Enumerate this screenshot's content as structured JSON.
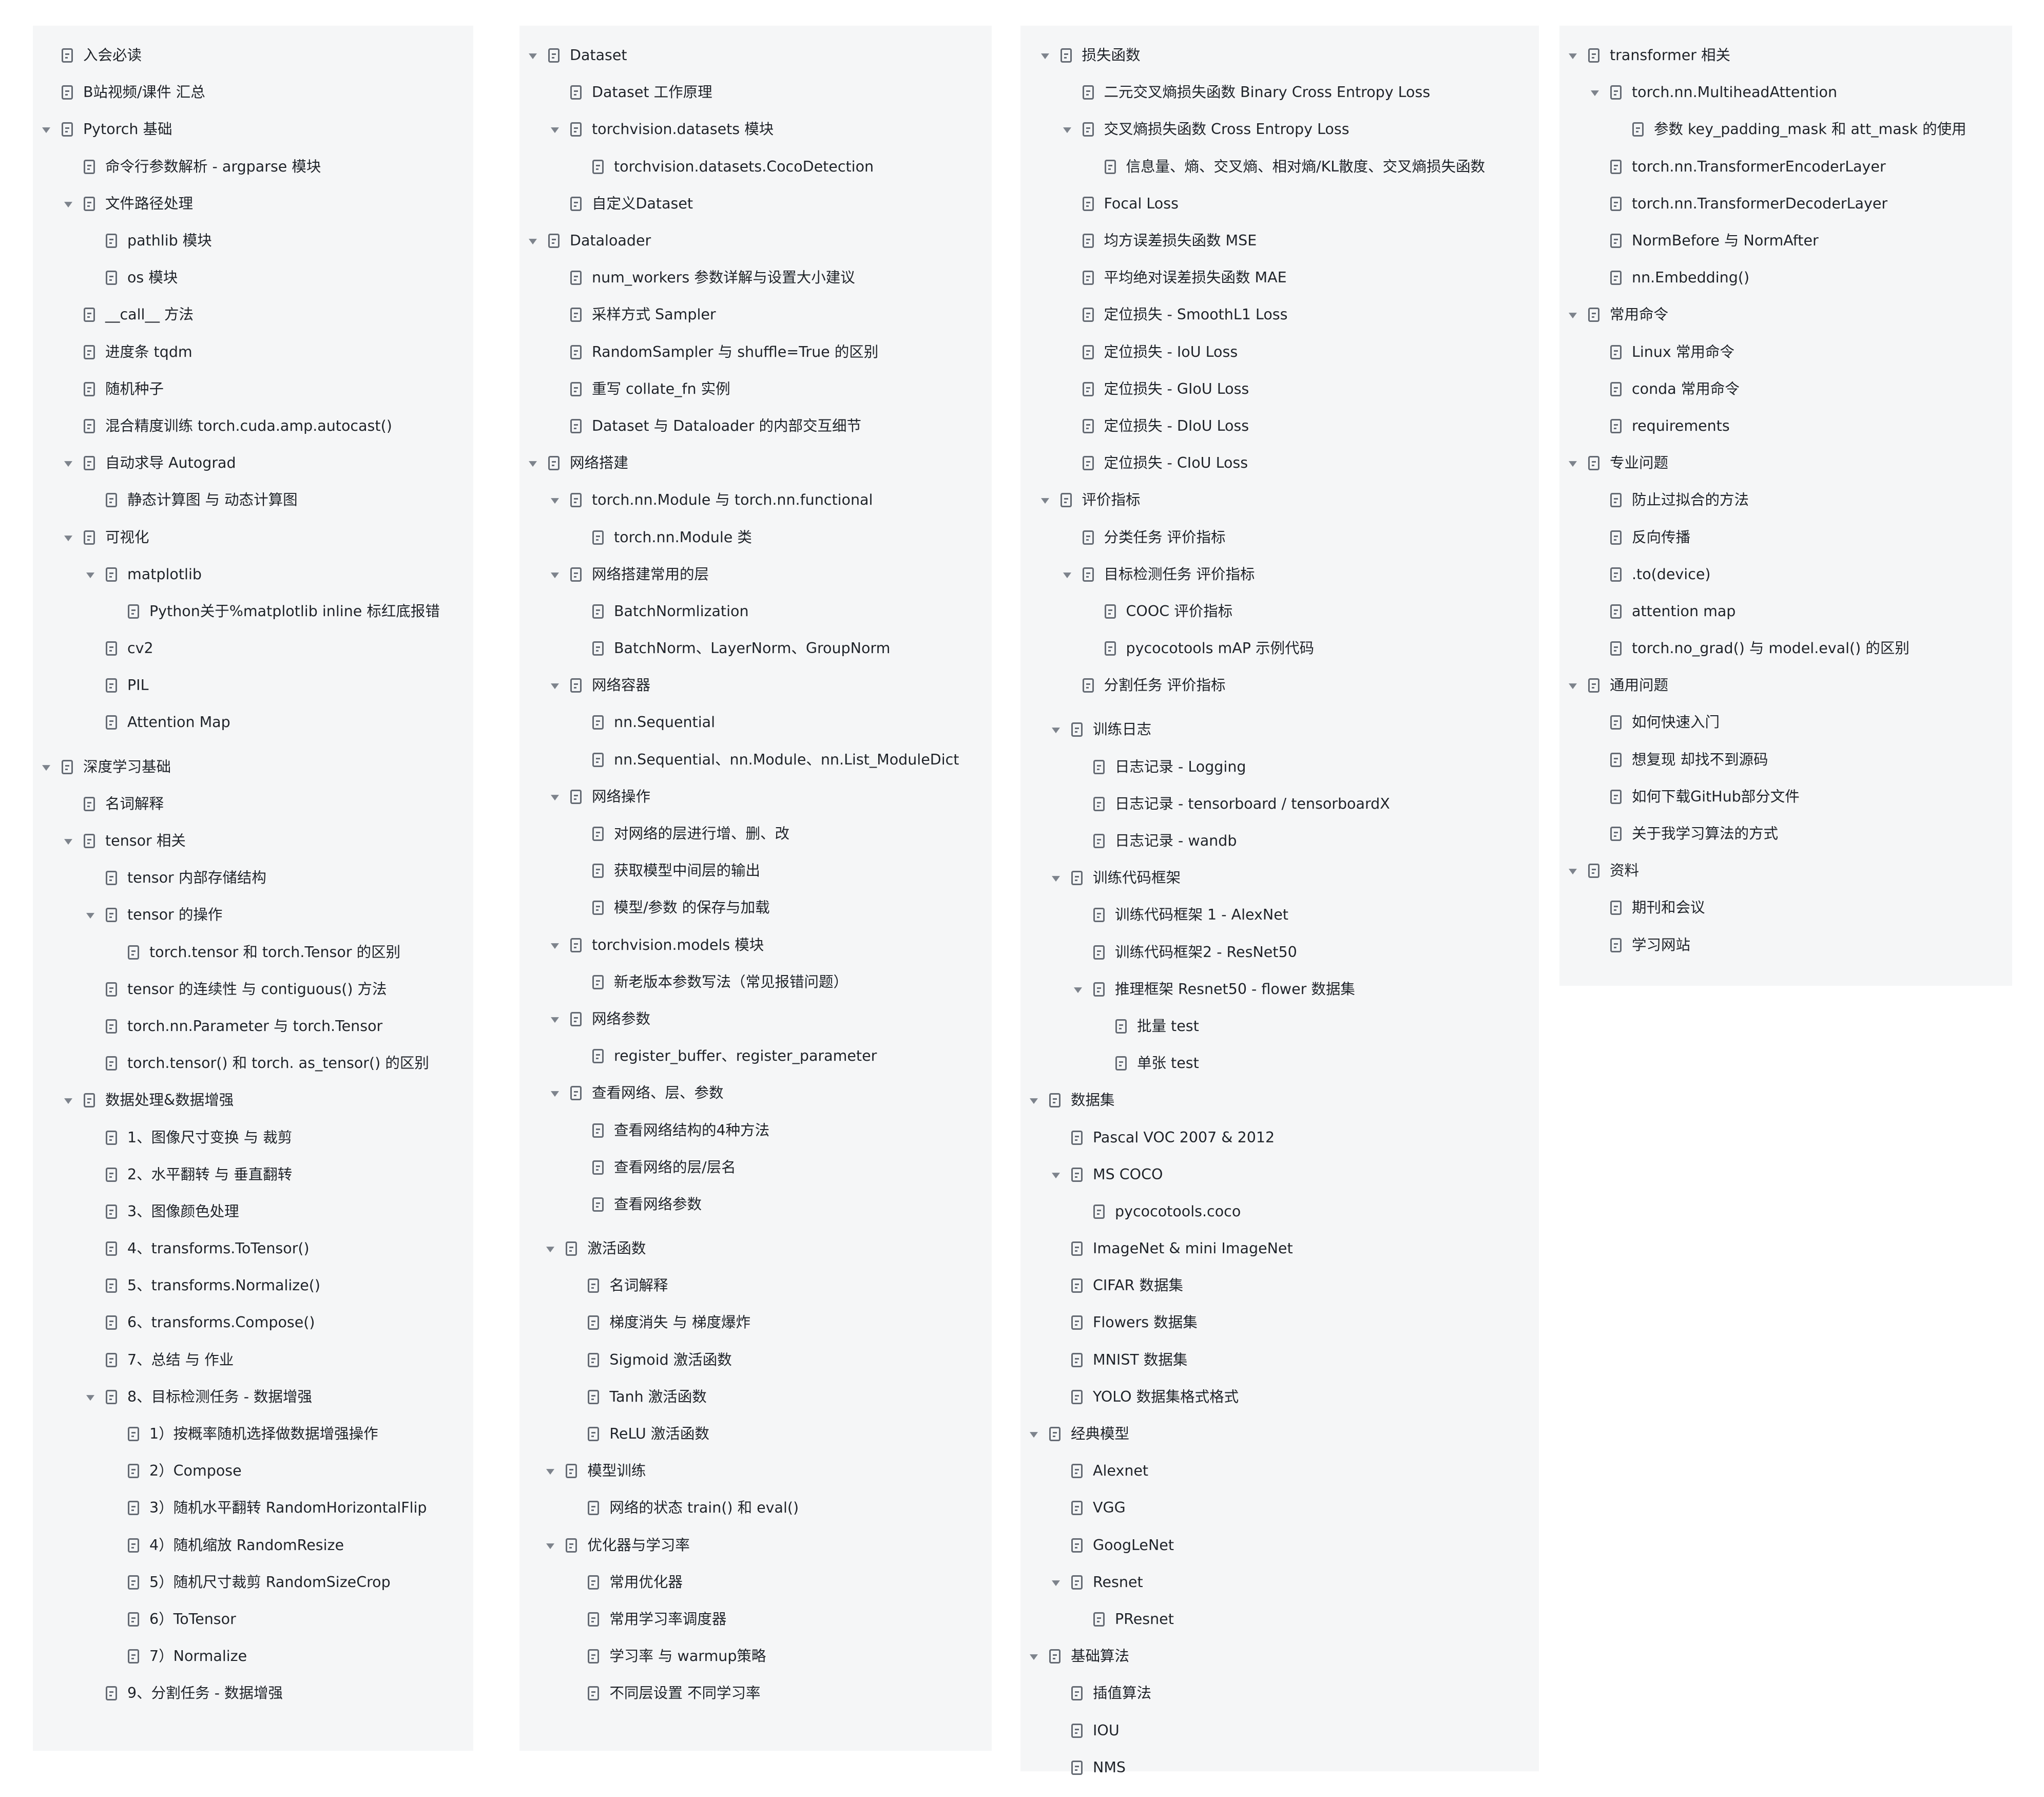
{
  "colors": {
    "panel_bg": "#f5f6f7",
    "text": "#1f2329",
    "icon": "#646a73",
    "arrow": "#7d838c"
  },
  "icons": {
    "expand": "chevron-down-icon",
    "document": "doc-icon"
  },
  "panels": [
    {
      "items": [
        {
          "t": "入会必读",
          "d": 0,
          "c": false
        },
        {
          "t": "B站视频/课件 汇总",
          "d": 0,
          "c": false
        },
        {
          "t": "Pytorch 基础",
          "d": 0,
          "c": true
        },
        {
          "t": "命令行参数解析 - argparse 模块",
          "d": 1,
          "c": false
        },
        {
          "t": "文件路径处理",
          "d": 1,
          "c": true
        },
        {
          "t": "pathlib 模块",
          "d": 2,
          "c": false
        },
        {
          "t": "os 模块",
          "d": 2,
          "c": false
        },
        {
          "t": "__call__ 方法",
          "d": 1,
          "c": false
        },
        {
          "t": "进度条 tqdm",
          "d": 1,
          "c": false
        },
        {
          "t": "随机种子",
          "d": 1,
          "c": false
        },
        {
          "t": "混合精度训练 torch.cuda.amp.autocast()",
          "d": 1,
          "c": false
        },
        {
          "t": "自动求导 Autograd",
          "d": 1,
          "c": true
        },
        {
          "t": "静态计算图 与 动态计算图",
          "d": 2,
          "c": false
        },
        {
          "t": "可视化",
          "d": 1,
          "c": true
        },
        {
          "t": "matplotlib",
          "d": 2,
          "c": true
        },
        {
          "t": "Python关于%matplotlib inline 标红底报错",
          "d": 3,
          "c": false
        },
        {
          "t": "cv2",
          "d": 2,
          "c": false
        },
        {
          "t": "PIL",
          "d": 2,
          "c": false
        },
        {
          "t": "Attention Map",
          "d": 2,
          "c": false
        },
        {
          "gap": true
        },
        {
          "t": "深度学习基础",
          "d": 0,
          "c": true
        },
        {
          "t": "名词解释",
          "d": 1,
          "c": false
        },
        {
          "t": "tensor 相关",
          "d": 1,
          "c": true
        },
        {
          "t": "tensor 内部存储结构",
          "d": 2,
          "c": false
        },
        {
          "t": "tensor 的操作",
          "d": 2,
          "c": true
        },
        {
          "t": "torch.tensor 和 torch.Tensor 的区别",
          "d": 3,
          "c": false
        },
        {
          "t": "tensor 的连续性 与 contiguous() 方法",
          "d": 2,
          "c": false
        },
        {
          "t": "torch.nn.Parameter 与 torch.Tensor",
          "d": 2,
          "c": false
        },
        {
          "t": "torch.tensor() 和 torch. as_tensor() 的区别",
          "d": 2,
          "c": false
        },
        {
          "t": "数据处理&数据增强",
          "d": 1,
          "c": true
        },
        {
          "t": "1、图像尺寸变换 与 裁剪",
          "d": 2,
          "c": false
        },
        {
          "t": "2、水平翻转 与 垂直翻转",
          "d": 2,
          "c": false
        },
        {
          "t": "3、图像颜色处理",
          "d": 2,
          "c": false
        },
        {
          "t": "4、transforms.ToTensor()",
          "d": 2,
          "c": false
        },
        {
          "t": "5、transforms.Normalize()",
          "d": 2,
          "c": false
        },
        {
          "t": "6、transforms.Compose()",
          "d": 2,
          "c": false
        },
        {
          "t": "7、总结 与 作业",
          "d": 2,
          "c": false
        },
        {
          "t": "8、目标检测任务 - 数据增强",
          "d": 2,
          "c": true
        },
        {
          "t": "1）按概率随机选择做数据增强操作",
          "d": 3,
          "c": false
        },
        {
          "t": "2）Compose",
          "d": 3,
          "c": false
        },
        {
          "t": "3）随机水平翻转 RandomHorizontalFlip",
          "d": 3,
          "c": false
        },
        {
          "t": "4）随机缩放 RandomResize",
          "d": 3,
          "c": false
        },
        {
          "t": "5）随机尺寸裁剪 RandomSizeCrop",
          "d": 3,
          "c": false
        },
        {
          "t": "6）ToTensor",
          "d": 3,
          "c": false
        },
        {
          "t": "7）Normalize",
          "d": 3,
          "c": false
        },
        {
          "t": "9、分割任务 - 数据增强",
          "d": 2,
          "c": false
        }
      ]
    },
    {
      "items": [
        {
          "t": "Dataset",
          "d": 0,
          "c": true
        },
        {
          "t": "Dataset 工作原理",
          "d": 1,
          "c": false
        },
        {
          "t": "torchvision.datasets 模块",
          "d": 1,
          "c": true
        },
        {
          "t": "torchvision.datasets.CocoDetection",
          "d": 2,
          "c": false
        },
        {
          "t": "自定义Dataset",
          "d": 1,
          "c": false
        },
        {
          "t": "Dataloader",
          "d": 0,
          "c": true
        },
        {
          "t": "num_workers 参数详解与设置大小建议",
          "d": 1,
          "c": false
        },
        {
          "t": "采样方式 Sampler",
          "d": 1,
          "c": false
        },
        {
          "t": "RandomSampler 与 shuffle=True 的区别",
          "d": 1,
          "c": false
        },
        {
          "t": "重写 collate_fn 实例",
          "d": 1,
          "c": false
        },
        {
          "t": "Dataset 与 Dataloader 的内部交互细节",
          "d": 1,
          "c": false
        },
        {
          "t": "网络搭建",
          "d": 0,
          "c": true
        },
        {
          "t": "torch.nn.Module 与 torch.nn.functional",
          "d": 1,
          "c": true
        },
        {
          "t": "torch.nn.Module 类",
          "d": 2,
          "c": false
        },
        {
          "t": "网络搭建常用的层",
          "d": 1,
          "c": true
        },
        {
          "t": "BatchNormlization",
          "d": 2,
          "c": false
        },
        {
          "t": "BatchNorm、LayerNorm、GroupNorm",
          "d": 2,
          "c": false
        },
        {
          "t": "网络容器",
          "d": 1,
          "c": true
        },
        {
          "t": "nn.Sequential",
          "d": 2,
          "c": false
        },
        {
          "t": "nn.Sequential、nn.Module、nn.List_ModuleDict",
          "d": 2,
          "c": false
        },
        {
          "t": "网络操作",
          "d": 1,
          "c": true
        },
        {
          "t": "对网络的层进行增、删、改",
          "d": 2,
          "c": false
        },
        {
          "t": "获取模型中间层的输出",
          "d": 2,
          "c": false
        },
        {
          "t": "模型/参数 的保存与加载",
          "d": 2,
          "c": false
        },
        {
          "t": "torchvision.models 模块",
          "d": 1,
          "c": true
        },
        {
          "t": "新老版本参数写法（常见报错问题）",
          "d": 2,
          "c": false
        },
        {
          "t": "网络参数",
          "d": 1,
          "c": true
        },
        {
          "t": "register_buffer、register_parameter",
          "d": 2,
          "c": false
        },
        {
          "t": "查看网络、层、参数",
          "d": 1,
          "c": true
        },
        {
          "t": "查看网络结构的4种方法",
          "d": 2,
          "c": false
        },
        {
          "t": "查看网络的层/层名",
          "d": 2,
          "c": false
        },
        {
          "t": "查看网络参数",
          "d": 2,
          "c": false
        },
        {
          "gap": true
        },
        {
          "t": "激活函数",
          "d": 0.8,
          "c": true
        },
        {
          "t": "名词解释",
          "d": 1.8,
          "c": false
        },
        {
          "t": "梯度消失 与 梯度爆炸",
          "d": 1.8,
          "c": false
        },
        {
          "t": "Sigmoid 激活函数",
          "d": 1.8,
          "c": false
        },
        {
          "t": "Tanh 激活函数",
          "d": 1.8,
          "c": false
        },
        {
          "t": "ReLU 激活函数",
          "d": 1.8,
          "c": false
        },
        {
          "t": "模型训练",
          "d": 0.8,
          "c": true
        },
        {
          "t": "网络的状态 train() 和 eval()",
          "d": 1.8,
          "c": false
        },
        {
          "t": "优化器与学习率",
          "d": 0.8,
          "c": true
        },
        {
          "t": "常用优化器",
          "d": 1.8,
          "c": false
        },
        {
          "t": "常用学习率调度器",
          "d": 1.8,
          "c": false
        },
        {
          "t": "学习率 与 warmup策略",
          "d": 1.8,
          "c": false
        },
        {
          "t": "不同层设置 不同学习率",
          "d": 1.8,
          "c": false
        }
      ]
    },
    {
      "items": [
        {
          "t": "损失函数",
          "d": 0.5,
          "c": true
        },
        {
          "t": "二元交叉熵损失函数 Binary Cross Entropy Loss",
          "d": 1.5,
          "c": false
        },
        {
          "t": "交叉熵损失函数 Cross Entropy Loss",
          "d": 1.5,
          "c": true
        },
        {
          "t": "信息量、熵、交叉熵、相对熵/KL散度、交叉熵损失函数",
          "d": 2.5,
          "c": false
        },
        {
          "t": "Focal Loss",
          "d": 1.5,
          "c": false
        },
        {
          "t": "均方误差损失函数 MSE",
          "d": 1.5,
          "c": false
        },
        {
          "t": "平均绝对误差损失函数 MAE",
          "d": 1.5,
          "c": false
        },
        {
          "t": "定位损失 - SmoothL1 Loss",
          "d": 1.5,
          "c": false
        },
        {
          "t": "定位损失 - IoU Loss",
          "d": 1.5,
          "c": false
        },
        {
          "t": "定位损失 - GIoU Loss",
          "d": 1.5,
          "c": false
        },
        {
          "t": "定位损失 - DIoU Loss",
          "d": 1.5,
          "c": false
        },
        {
          "t": "定位损失 - CIoU Loss",
          "d": 1.5,
          "c": false
        },
        {
          "t": "评价指标",
          "d": 0.5,
          "c": true
        },
        {
          "t": "分类任务 评价指标",
          "d": 1.5,
          "c": false
        },
        {
          "t": "目标检测任务 评价指标",
          "d": 1.5,
          "c": true
        },
        {
          "t": "COOC 评价指标",
          "d": 2.5,
          "c": false
        },
        {
          "t": "pycocotools mAP 示例代码",
          "d": 2.5,
          "c": false
        },
        {
          "t": "分割任务 评价指标",
          "d": 1.5,
          "c": false
        },
        {
          "gap": true
        },
        {
          "t": "训练日志",
          "d": 1,
          "c": true
        },
        {
          "t": "日志记录 - Logging",
          "d": 2,
          "c": false
        },
        {
          "t": "日志记录 - tensorboard / tensorboardX",
          "d": 2,
          "c": false
        },
        {
          "t": "日志记录 - wandb",
          "d": 2,
          "c": false
        },
        {
          "t": "训练代码框架",
          "d": 1,
          "c": true
        },
        {
          "t": "训练代码框架 1 - AlexNet",
          "d": 2,
          "c": false
        },
        {
          "t": "训练代码框架2 - ResNet50",
          "d": 2,
          "c": false
        },
        {
          "t": "推理框架 Resnet50 - flower 数据集",
          "d": 2,
          "c": true
        },
        {
          "t": "批量 test",
          "d": 3,
          "c": false
        },
        {
          "t": "单张 test",
          "d": 3,
          "c": false
        },
        {
          "t": "数据集",
          "d": 0,
          "c": true
        },
        {
          "t": "Pascal VOC 2007 & 2012",
          "d": 1,
          "c": false
        },
        {
          "t": "MS COCO",
          "d": 1,
          "c": true
        },
        {
          "t": "pycocotools.coco",
          "d": 2,
          "c": false
        },
        {
          "t": "ImageNet & mini ImageNet",
          "d": 1,
          "c": false
        },
        {
          "t": "CIFAR 数据集",
          "d": 1,
          "c": false
        },
        {
          "t": "Flowers 数据集",
          "d": 1,
          "c": false
        },
        {
          "t": "MNIST 数据集",
          "d": 1,
          "c": false
        },
        {
          "t": "YOLO 数据集格式格式",
          "d": 1,
          "c": false
        },
        {
          "t": "经典模型",
          "d": 0,
          "c": true
        },
        {
          "t": "Alexnet",
          "d": 1,
          "c": false
        },
        {
          "t": "VGG",
          "d": 1,
          "c": false
        },
        {
          "t": "GoogLeNet",
          "d": 1,
          "c": false
        },
        {
          "t": "Resnet",
          "d": 1,
          "c": true
        },
        {
          "t": "PResnet",
          "d": 2,
          "c": false
        },
        {
          "t": "基础算法",
          "d": 0,
          "c": true
        },
        {
          "t": "插值算法",
          "d": 1,
          "c": false
        },
        {
          "t": "IOU",
          "d": 1,
          "c": false
        },
        {
          "t": "NMS",
          "d": 1,
          "c": false
        }
      ]
    },
    {
      "items": [
        {
          "t": "transformer 相关",
          "d": 0,
          "c": true
        },
        {
          "t": "torch.nn.MultiheadAttention",
          "d": 1,
          "c": true
        },
        {
          "t": "参数 key_padding_mask 和 att_mask 的使用",
          "d": 2,
          "c": false
        },
        {
          "t": "torch.nn.TransformerEncoderLayer",
          "d": 1,
          "c": false
        },
        {
          "t": "torch.nn.TransformerDecoderLayer",
          "d": 1,
          "c": false
        },
        {
          "t": "NormBefore 与 NormAfter",
          "d": 1,
          "c": false
        },
        {
          "t": "nn.Embedding()",
          "d": 1,
          "c": false
        },
        {
          "t": "常用命令",
          "d": 0,
          "c": true
        },
        {
          "t": "Linux 常用命令",
          "d": 1,
          "c": false
        },
        {
          "t": "conda 常用命令",
          "d": 1,
          "c": false
        },
        {
          "t": "requirements",
          "d": 1,
          "c": false
        },
        {
          "t": "专业问题",
          "d": 0,
          "c": true
        },
        {
          "t": "防止过拟合的方法",
          "d": 1,
          "c": false
        },
        {
          "t": "反向传播",
          "d": 1,
          "c": false
        },
        {
          "t": ".to(device)",
          "d": 1,
          "c": false
        },
        {
          "t": "attention map",
          "d": 1,
          "c": false
        },
        {
          "t": "torch.no_grad() 与 model.eval() 的区别",
          "d": 1,
          "c": false
        },
        {
          "t": "通用问题",
          "d": 0,
          "c": true
        },
        {
          "t": "如何快速入门",
          "d": 1,
          "c": false
        },
        {
          "t": "想复现 却找不到源码",
          "d": 1,
          "c": false
        },
        {
          "t": "如何下载GitHub部分文件",
          "d": 1,
          "c": false
        },
        {
          "t": "关于我学习算法的方式",
          "d": 1,
          "c": false
        },
        {
          "t": "资料",
          "d": 0,
          "c": true
        },
        {
          "t": "期刊和会议",
          "d": 1,
          "c": false
        },
        {
          "t": "学习网站",
          "d": 1,
          "c": false
        }
      ]
    }
  ]
}
